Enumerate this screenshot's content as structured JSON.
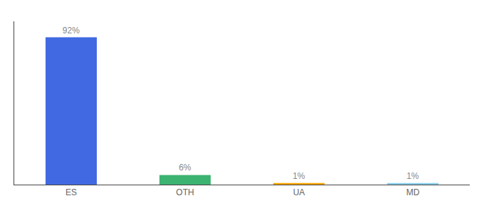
{
  "chart_data": {
    "type": "bar",
    "categories": [
      "ES",
      "OTH",
      "UA",
      "MD"
    ],
    "values": [
      92,
      6,
      1,
      1
    ],
    "value_labels": [
      "92%",
      "6%",
      "1%",
      "1%"
    ],
    "colors": [
      "#4169e1",
      "#3cb371",
      "#ffa500",
      "#87ceeb"
    ],
    "ylim": [
      0,
      102
    ],
    "grid": false,
    "data_labels": true,
    "tick_labels": "x"
  }
}
